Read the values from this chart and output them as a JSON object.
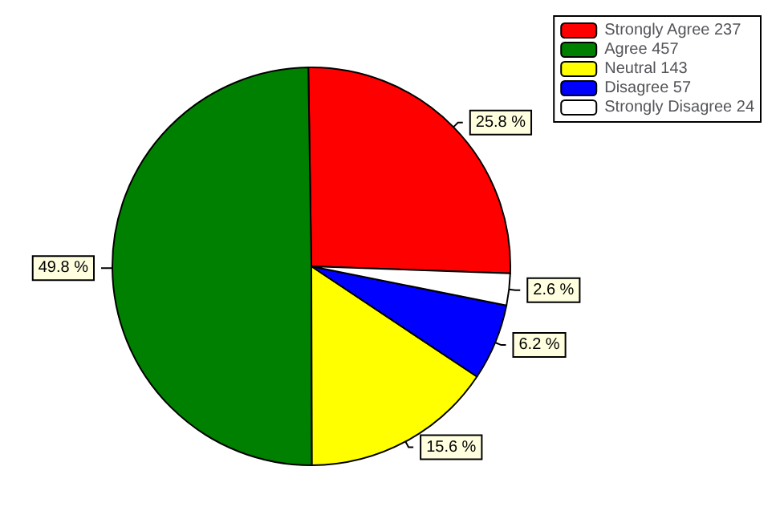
{
  "chart_data": {
    "type": "pie",
    "categories": [
      "Strongly Agree 237",
      "Agree 457",
      "Neutral 143",
      "Disagree 57",
      "Strongly Disagree 24"
    ],
    "values": [
      25.8,
      49.8,
      15.6,
      6.2,
      2.6
    ],
    "colors": [
      "#ff0000",
      "#008000",
      "#ffff00",
      "#0000ff",
      "#ffffff"
    ],
    "value_labels": [
      "25.8 %",
      "49.8 %",
      "15.6 %",
      "6.2 %",
      "2.6 %"
    ],
    "legend": "top right"
  }
}
